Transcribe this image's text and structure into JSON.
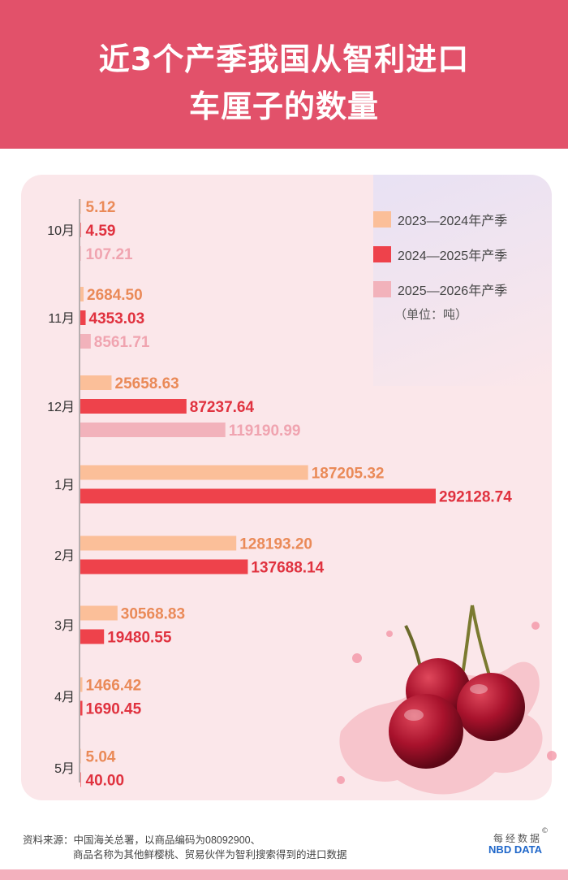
{
  "header": {
    "title_line1": "近3个产季我国从智利进口",
    "title_line2": "车厘子的数量"
  },
  "legend": {
    "series": [
      "2023—2024年产季",
      "2024—2025年产季",
      "2025—2026年产季"
    ],
    "unit": "（单位：吨）"
  },
  "colors": {
    "header_bg": "#e2516a",
    "panel_bg": "#fbe7ea",
    "series": [
      "#fbbf99",
      "#ee424b",
      "#f2b2bb"
    ],
    "label_colors": [
      "#ea8a58",
      "#e0323f",
      "#f0a4b0"
    ]
  },
  "chart_data": {
    "type": "bar",
    "orientation": "horizontal",
    "categories": [
      "10月",
      "11月",
      "12月",
      "1月",
      "2月",
      "3月",
      "4月",
      "5月"
    ],
    "series": [
      {
        "name": "2023—2024年产季",
        "values": [
          5.12,
          2684.5,
          25658.63,
          187205.32,
          128193.2,
          30568.83,
          1466.42,
          5.04
        ]
      },
      {
        "name": "2024—2025年产季",
        "values": [
          4.59,
          4353.03,
          87237.64,
          292128.74,
          137688.14,
          19480.55,
          1690.45,
          40.0
        ]
      },
      {
        "name": "2025—2026年产季",
        "values": [
          107.21,
          8561.71,
          119190.99,
          null,
          null,
          null,
          null,
          null
        ]
      }
    ],
    "value_labels": [
      [
        "5.12",
        "2684.50",
        "25658.63",
        "187205.32",
        "128193.20",
        "30568.83",
        "1466.42",
        "5.04"
      ],
      [
        "4.59",
        "4353.03",
        "87237.64",
        "292128.74",
        "137688.14",
        "19480.55",
        "1690.45",
        "40.00"
      ],
      [
        "107.21",
        "8561.71",
        "119190.99",
        null,
        null,
        null,
        null,
        null
      ]
    ],
    "title": "近3个产季我国从智利进口车厘子的数量",
    "xlabel": "",
    "ylabel": "",
    "xlim": [
      0,
      292128.74
    ],
    "grid": false,
    "legend_position": "top-right"
  },
  "footer": {
    "source_line1": "资料来源：中国海关总署，以商品编码为08092900、",
    "source_line2": "商品名称为其他鲜樱桃、贸易伙伴为智利搜索得到的进口数据",
    "brand_cn": "每经数据",
    "brand_en": "NBD DATA",
    "copyright": "©"
  },
  "decoration": {
    "illustration": "cherry-splash-illustration"
  }
}
